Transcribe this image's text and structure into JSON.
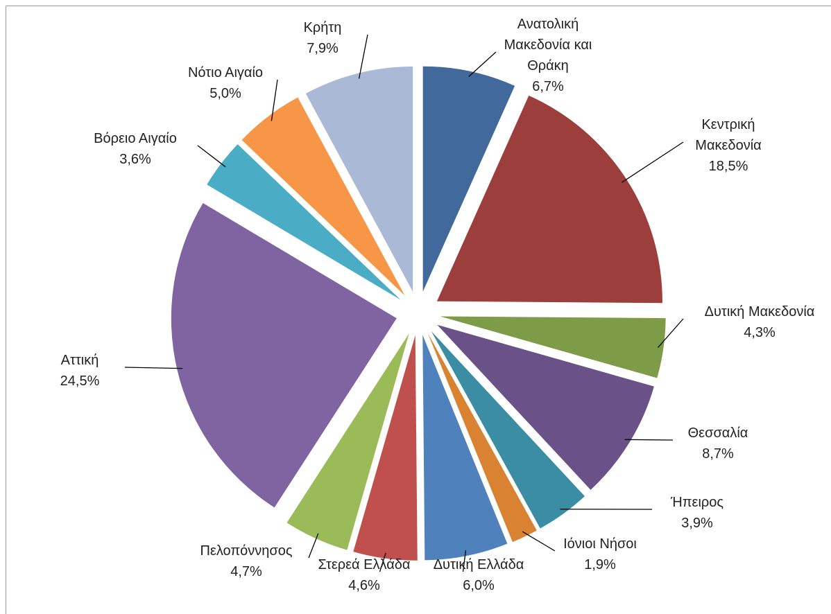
{
  "chart_data": {
    "type": "pie",
    "categories": [
      "Ανατολική Μακεδονία και Θράκη",
      "Κεντρική Μακεδονία",
      "Δυτική Μακεδονία",
      "Θεσσαλία",
      "Ήπειρος",
      "Ιόνιοι Νήσοι",
      "Δυτική Ελλάδα",
      "Στερεά Ελλάδα",
      "Πελοπόννησος",
      "Αττική",
      "Βόρειο Αιγαίο",
      "Νότιο Αιγαίο",
      "Κρήτη"
    ],
    "values": [
      6.7,
      18.5,
      4.3,
      8.7,
      3.9,
      1.9,
      6.0,
      4.6,
      4.7,
      24.5,
      3.6,
      5.0,
      7.9
    ],
    "value_labels": [
      "6,7%",
      "18,5%",
      "4,3%",
      "8,7%",
      "3,9%",
      "1,9%",
      "6,0%",
      "4,6%",
      "4,7%",
      "24,5%",
      "3,6%",
      "5,0%",
      "7,9%"
    ],
    "colors": [
      "#41699B",
      "#9C3F3C",
      "#7E9B48",
      "#6A5187",
      "#3A8DA3",
      "#D98231",
      "#4F81BD",
      "#C0504D",
      "#9BBB59",
      "#8064A2",
      "#4BACC6",
      "#F79646",
      "#AAB9D6"
    ]
  }
}
